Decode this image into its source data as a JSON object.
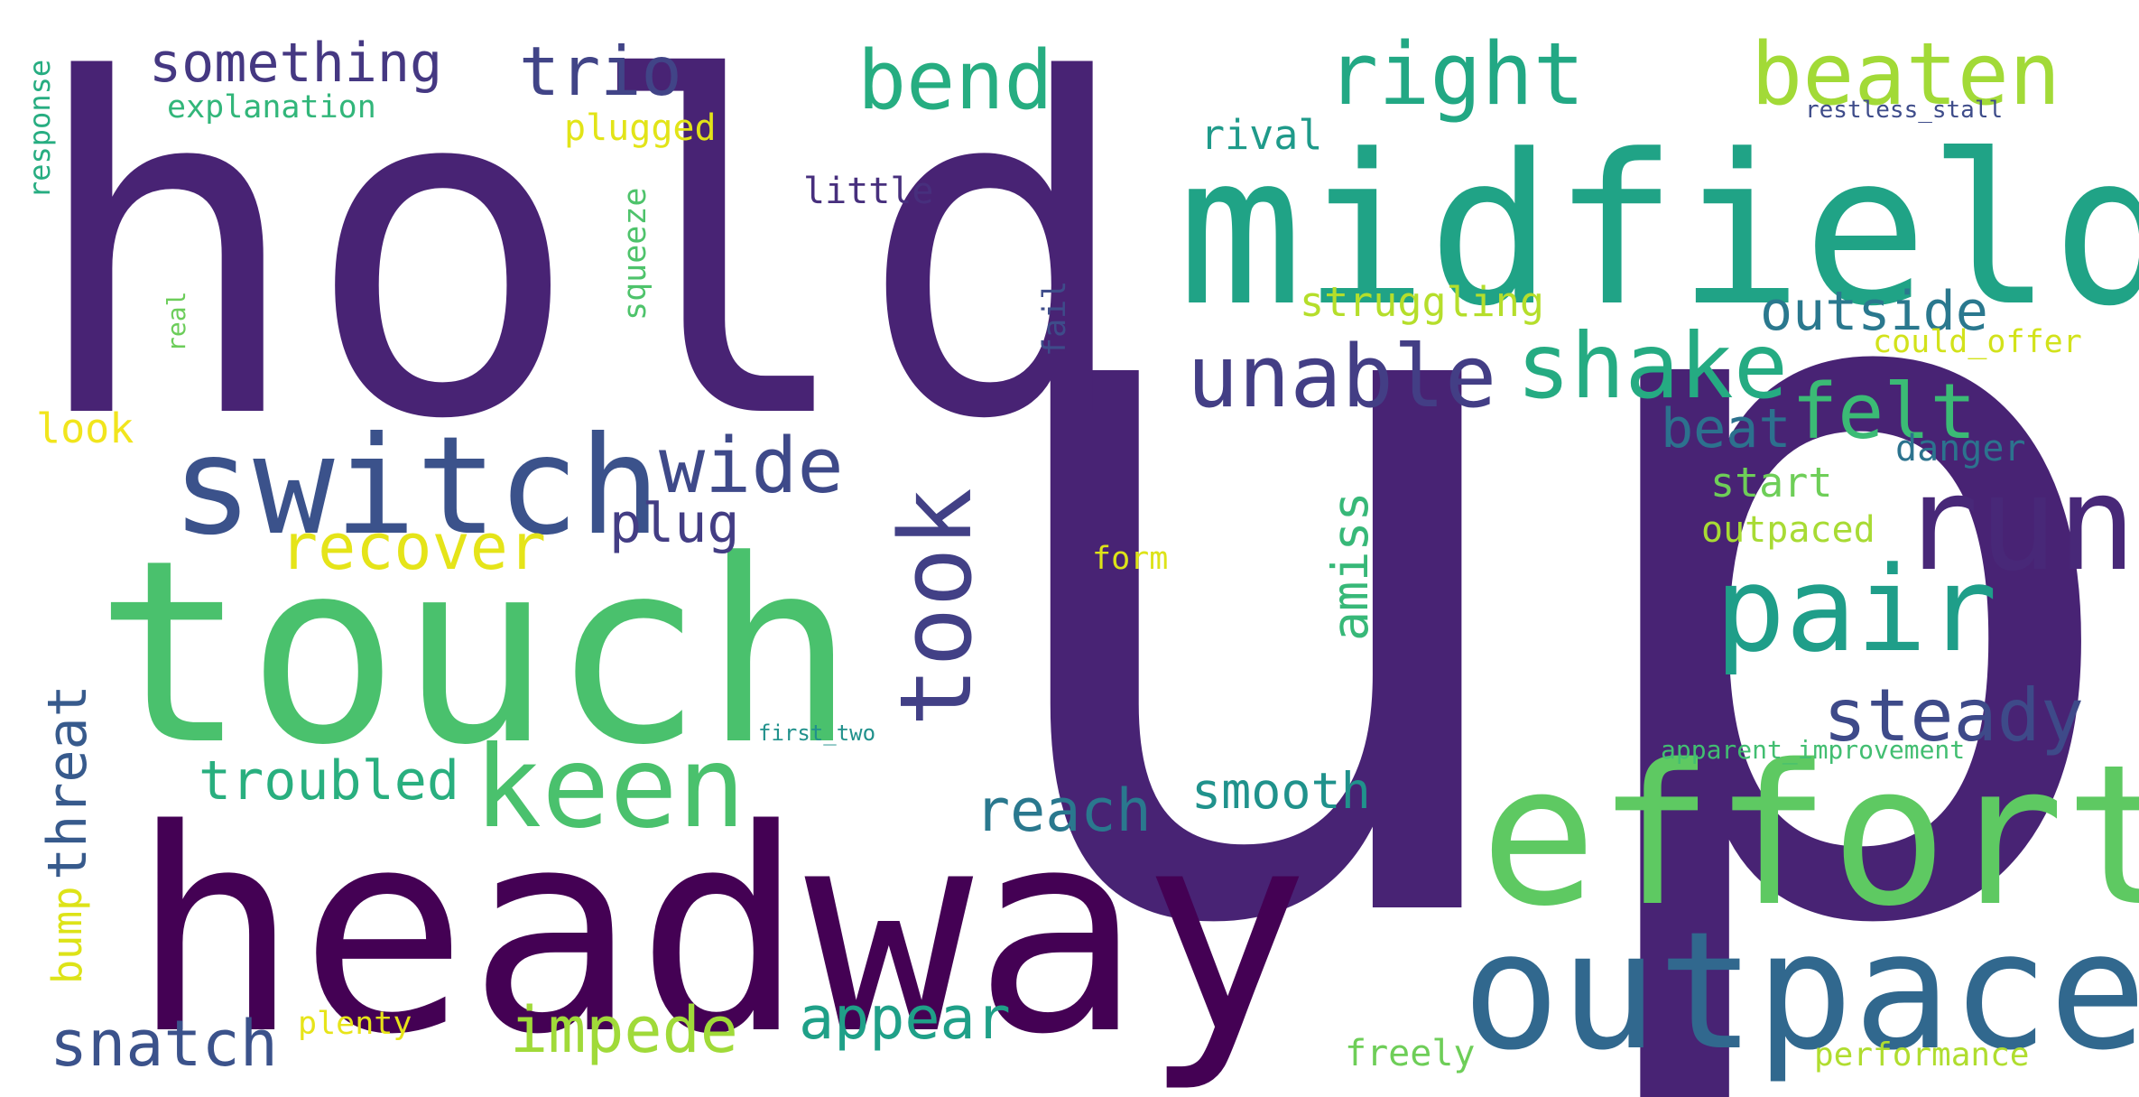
{
  "words": [
    {
      "text": "up",
      "color": "#482374"
    },
    {
      "text": "hold",
      "color": "#482374"
    },
    {
      "text": "headway",
      "color": "#440154"
    },
    {
      "text": "touch",
      "color": "#4ac16d"
    },
    {
      "text": "midfield",
      "color": "#20a386"
    },
    {
      "text": "effort",
      "color": "#5ec962"
    },
    {
      "text": "outpace",
      "color": "#31688e"
    },
    {
      "text": "switch",
      "color": "#3b528b"
    },
    {
      "text": "run",
      "color": "#482878"
    },
    {
      "text": "pair",
      "color": "#1f9e89"
    },
    {
      "text": "keen",
      "color": "#4ac16d"
    },
    {
      "text": "took",
      "color": "#424086"
    },
    {
      "text": "shake",
      "color": "#25ab82"
    },
    {
      "text": "unable",
      "color": "#433e85"
    },
    {
      "text": "right",
      "color": "#22a884"
    },
    {
      "text": "beaten",
      "color": "#a2da37"
    },
    {
      "text": "bend",
      "color": "#26ad81"
    },
    {
      "text": "wide",
      "color": "#3e4989"
    },
    {
      "text": "felt",
      "color": "#3bbb75"
    },
    {
      "text": "steady",
      "color": "#3e4a89"
    },
    {
      "text": "trio",
      "color": "#414487"
    },
    {
      "text": "something",
      "color": "#453882"
    },
    {
      "text": "outside",
      "color": "#2a788e"
    },
    {
      "text": "beat",
      "color": "#2c718e"
    },
    {
      "text": "plug",
      "color": "#433d84"
    },
    {
      "text": "recover",
      "color": "#e5e419"
    },
    {
      "text": "threat",
      "color": "#375a8c"
    },
    {
      "text": "snatch",
      "color": "#3b528b"
    },
    {
      "text": "impede",
      "color": "#a0da39"
    },
    {
      "text": "appear",
      "color": "#1fa088"
    },
    {
      "text": "reach",
      "color": "#2a788e"
    },
    {
      "text": "troubled",
      "color": "#29af7f"
    },
    {
      "text": "smooth",
      "color": "#20928c"
    },
    {
      "text": "amiss",
      "color": "#37b878"
    },
    {
      "text": "bump",
      "color": "#dde318"
    },
    {
      "text": "rival",
      "color": "#1f9a8a"
    },
    {
      "text": "struggling",
      "color": "#b5de2b"
    },
    {
      "text": "explanation",
      "color": "#32b67a"
    },
    {
      "text": "plugged",
      "color": "#e2e418"
    },
    {
      "text": "little",
      "color": "#472f7d"
    },
    {
      "text": "squeeze",
      "color": "#4ec36b"
    },
    {
      "text": "real",
      "color": "#6ccd5a"
    },
    {
      "text": "fail",
      "color": "#3e4c8a"
    },
    {
      "text": "response",
      "color": "#27ad81"
    },
    {
      "text": "look",
      "color": "#f1e51d"
    },
    {
      "text": "form",
      "color": "#dde318"
    },
    {
      "text": "start",
      "color": "#6ece58"
    },
    {
      "text": "outpaced",
      "color": "#a8db34"
    },
    {
      "text": "danger",
      "color": "#2c738e"
    },
    {
      "text": "could_offer",
      "color": "#d2e21b"
    },
    {
      "text": "restless_stall",
      "color": "#3e4c8a"
    },
    {
      "text": "first_two",
      "color": "#21918c"
    },
    {
      "text": "apparent_improvement",
      "color": "#42be71"
    },
    {
      "text": "plenty",
      "color": "#e7e419"
    },
    {
      "text": "freely",
      "color": "#6ece58"
    },
    {
      "text": "performance",
      "color": "#b0dd2f"
    }
  ]
}
